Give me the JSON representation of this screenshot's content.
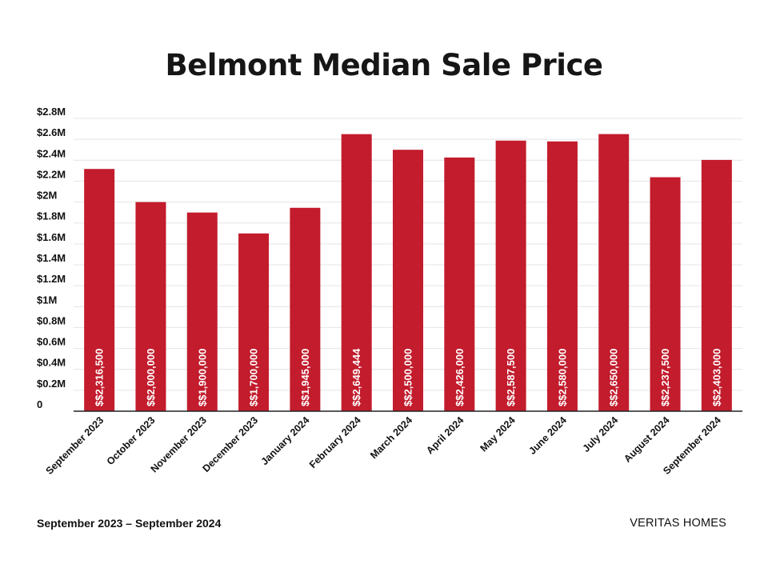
{
  "chart_data": {
    "type": "bar",
    "title": "Belmont Median Sale Price",
    "xlabel": "",
    "ylabel": "",
    "ylim": [
      0,
      2800000
    ],
    "grid": true,
    "bar_color": "#c21c2d",
    "yticks": [
      {
        "value": 0,
        "label": "0"
      },
      {
        "value": 200000,
        "label": "$0.2M"
      },
      {
        "value": 400000,
        "label": "$0.4M"
      },
      {
        "value": 600000,
        "label": "$0.6M"
      },
      {
        "value": 800000,
        "label": "$0.8M"
      },
      {
        "value": 1000000,
        "label": "$1M"
      },
      {
        "value": 1200000,
        "label": "$1.2M"
      },
      {
        "value": 1400000,
        "label": "$1.4M"
      },
      {
        "value": 1600000,
        "label": "$1.6M"
      },
      {
        "value": 1800000,
        "label": "$1.8M"
      },
      {
        "value": 2000000,
        "label": "$2M"
      },
      {
        "value": 2200000,
        "label": "$2.2M"
      },
      {
        "value": 2400000,
        "label": "$2.4M"
      },
      {
        "value": 2600000,
        "label": "$2.6M"
      },
      {
        "value": 2800000,
        "label": "$2.8M"
      }
    ],
    "categories": [
      "September 2023",
      "October 2023",
      "November 2023",
      "December 2023",
      "January 2024",
      "February 2024",
      "March 2024",
      "April 2024",
      "May 2024",
      "June 2024",
      "July 2024",
      "August 2024",
      "September 2024"
    ],
    "values": [
      2316500,
      2000000,
      1900000,
      1700000,
      1945000,
      2649444,
      2500000,
      2426000,
      2587500,
      2580000,
      2650000,
      2237500,
      2403000
    ],
    "data_labels": [
      "$$2,316,500",
      "$$2,000,000",
      "$$1,900,000",
      "$$1,700,000",
      "$$1,945,000",
      "$$2,649,444",
      "$$2,500,000",
      "$$2,426,000",
      "$$2,587,500",
      "$$2,580,000",
      "$$2,650,000",
      "$$2,237,500",
      "$$2,403,000"
    ]
  },
  "footer": {
    "date_range": "September 2023 – September 2024",
    "brand": "VERITAS HOMES"
  }
}
